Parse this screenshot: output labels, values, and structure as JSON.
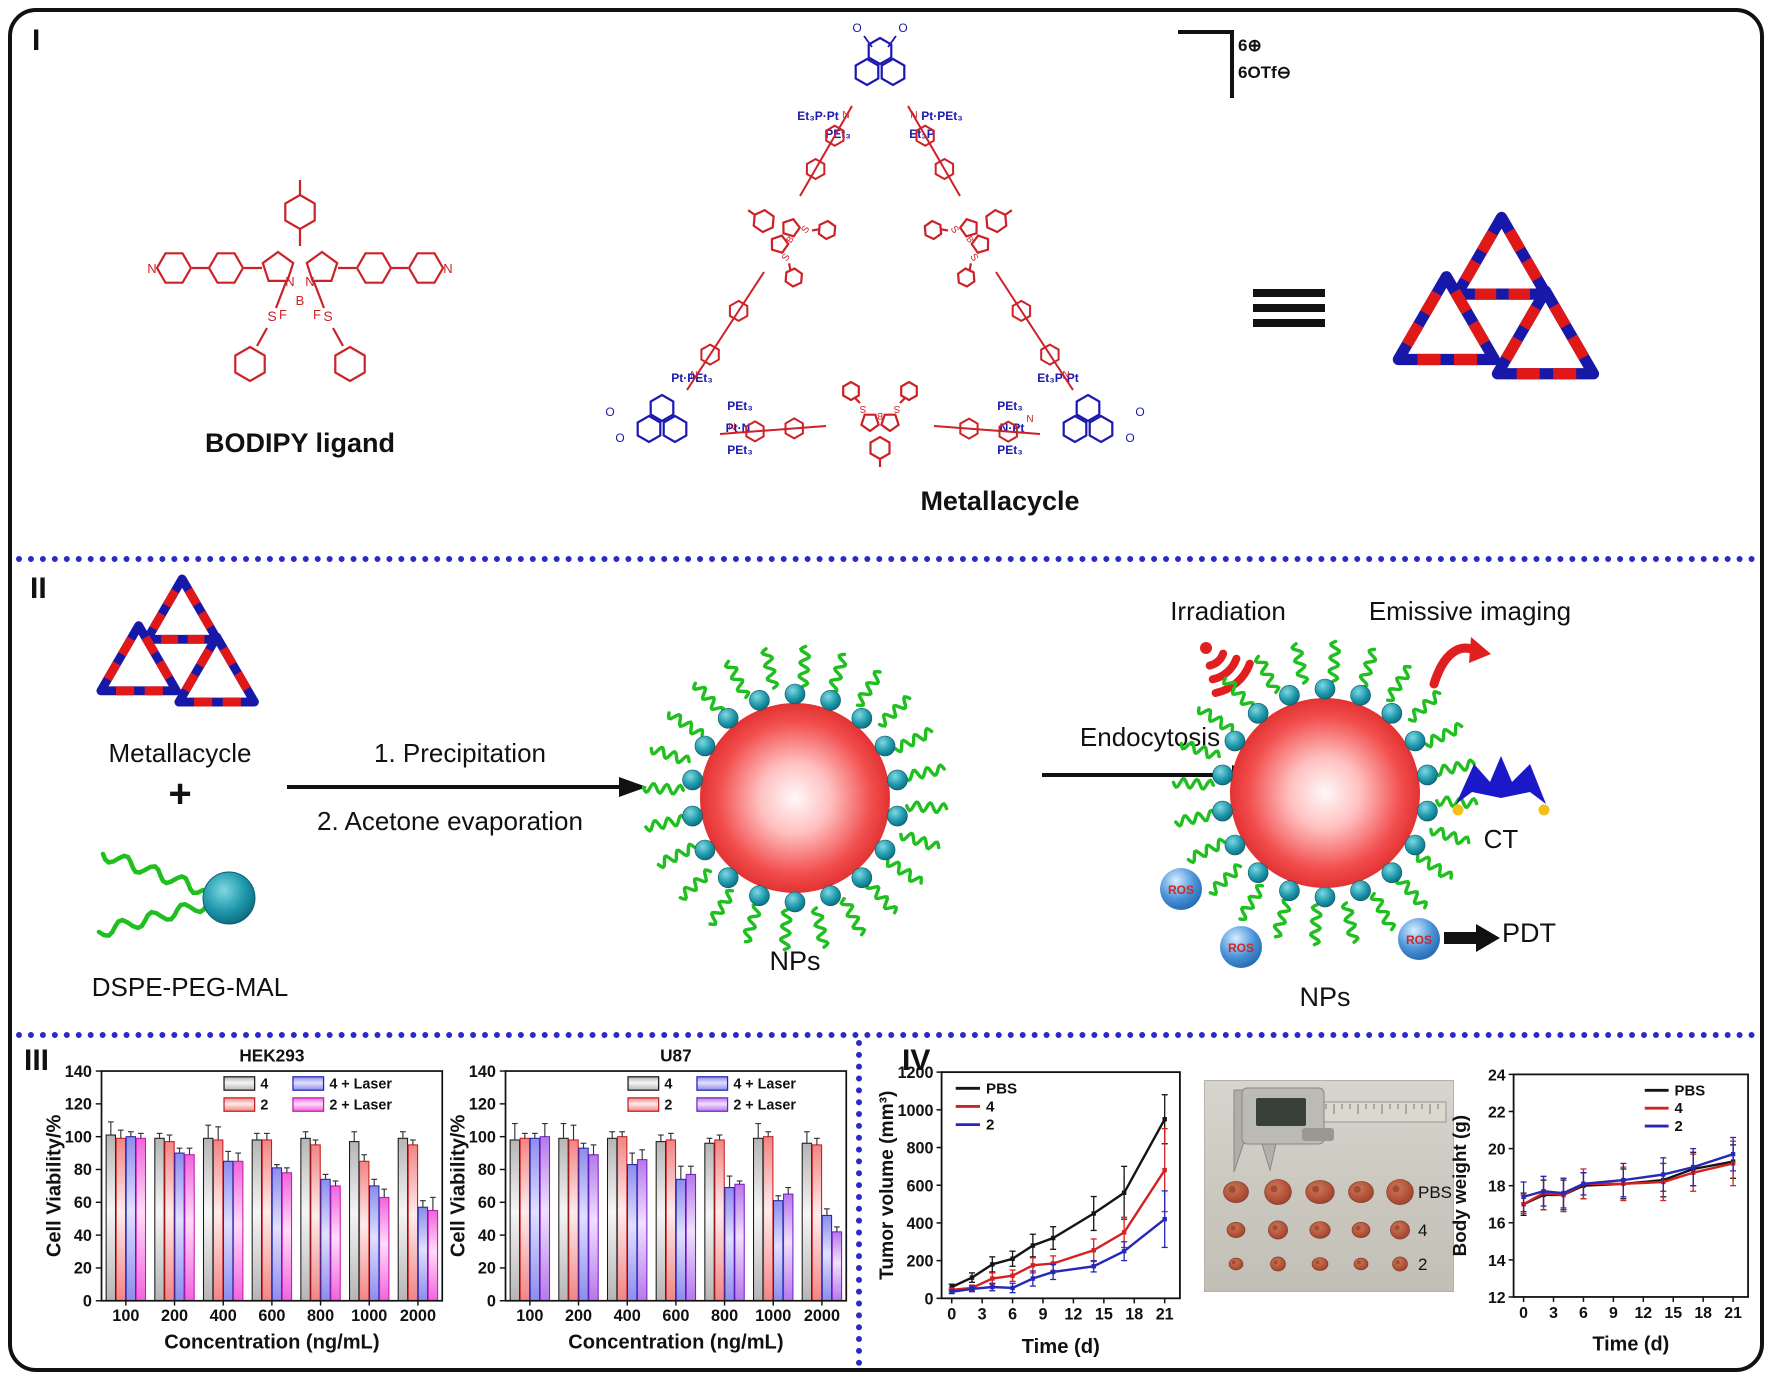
{
  "frame": {
    "panel_labels": {
      "p1": "I",
      "p2": "II",
      "p3": "III",
      "p4": "IV"
    }
  },
  "atoms": {
    "N": "N",
    "S": "S",
    "B": "B",
    "F": "F",
    "O": "O"
  },
  "groups": {
    "pet3": "PEt₃",
    "et3p": "Et₃P",
    "pt_pet3": "Pt·PEt₃",
    "et3p_pt": "Et₃P·Pt",
    "pt_n": "Pt·N",
    "n_pt": "N·Pt"
  },
  "colors": {
    "structure_red": "#cc2127",
    "structure_blue": "#1a18b0",
    "divider_blue": "#2a2ac8",
    "squiggle_green": "#1fbf1f",
    "bead_teal": "#1e98ab",
    "np_red": "#e42020",
    "ros_blue": "#4a93d8",
    "icon_red": "#e02020",
    "ct_blue": "#1a18c8"
  },
  "panel1": {
    "label_bodipy": "BODIPY ligand",
    "label_metallacycle": "Metallacycle",
    "charge_top": "6⊕",
    "charge_bottom": "6OTf⊖"
  },
  "panel2": {
    "metallacycle": "Metallacycle",
    "plus": "+",
    "dspe": "DSPE-PEG-MAL",
    "step1": "1. Precipitation",
    "step2": "2. Acetone evaporation",
    "nps_left": "NPs",
    "endocytosis": "Endocytosis",
    "irradiation": "Irradiation",
    "emissive_imaging": "Emissive imaging",
    "ct": "CT",
    "pdt": "PDT",
    "ros": "ROS",
    "nps_right": "NPs"
  },
  "panel4_photo": {
    "row_labels": [
      "PBS",
      "4",
      "2"
    ]
  },
  "chart_data": [
    {
      "type": "bar",
      "title": "HEK293",
      "xlabel": "Concentration (ng/mL)",
      "ylabel": "Cell Viability/%",
      "ylim": [
        0,
        140
      ],
      "ystep": 20,
      "legend_position": "top-right",
      "categories": [
        "100",
        "200",
        "400",
        "600",
        "800",
        "1000",
        "2000"
      ],
      "series": [
        {
          "name": "4",
          "values": [
            101,
            99,
            99,
            98,
            99,
            97,
            99
          ],
          "errors": [
            8,
            3,
            8,
            4,
            4,
            6,
            4
          ],
          "border": "#1a1a1a",
          "mid": "#b5b5b5",
          "light": "#f5f5f5"
        },
        {
          "name": "2",
          "values": [
            99,
            97,
            98,
            98,
            95,
            85,
            95
          ],
          "errors": [
            5,
            4,
            8,
            4,
            3,
            4,
            3
          ],
          "border": "#c41e1e",
          "mid": "#f28484",
          "light": "#ffecec"
        },
        {
          "name": "4 + Laser",
          "values": [
            100,
            90,
            85,
            81,
            74,
            70,
            57
          ],
          "errors": [
            3,
            3,
            6,
            2,
            3,
            4,
            4
          ],
          "border": "#2424ae",
          "mid": "#8c8cec",
          "light": "#e0e0ff"
        },
        {
          "name": "2 + Laser",
          "values": [
            99,
            89,
            85,
            78,
            70,
            63,
            55
          ],
          "errors": [
            3,
            4,
            5,
            3,
            3,
            5,
            8
          ],
          "border": "#c218b4",
          "mid": "#f263dc",
          "light": "#ffdcf8"
        }
      ]
    },
    {
      "type": "bar",
      "title": "U87",
      "xlabel": "Concentration (ng/mL)",
      "ylabel": "Cell Viability/%",
      "ylim": [
        0,
        140
      ],
      "ystep": 20,
      "legend_position": "top-right",
      "categories": [
        "100",
        "200",
        "400",
        "600",
        "800",
        "1000",
        "2000"
      ],
      "series": [
        {
          "name": "4",
          "values": [
            98,
            99,
            99,
            97,
            96,
            99,
            96
          ],
          "errors": [
            10,
            9,
            4,
            4,
            3,
            9,
            7
          ],
          "border": "#1a1a1a",
          "mid": "#b5b5b5",
          "light": "#f5f5f5"
        },
        {
          "name": "2",
          "values": [
            99,
            98,
            100,
            98,
            98,
            100,
            95
          ],
          "errors": [
            3,
            9,
            3,
            4,
            3,
            3,
            4
          ],
          "border": "#c41e1e",
          "mid": "#f28484",
          "light": "#ffecec"
        },
        {
          "name": "4 + Laser",
          "values": [
            99,
            93,
            83,
            74,
            69,
            61,
            52
          ],
          "errors": [
            3,
            3,
            7,
            8,
            7,
            3,
            4
          ],
          "border": "#2424ae",
          "mid": "#8c8cec",
          "light": "#e0e0ff"
        },
        {
          "name": "2 + Laser",
          "values": [
            100,
            89,
            86,
            77,
            71,
            65,
            42
          ],
          "errors": [
            8,
            6,
            6,
            5,
            2,
            4,
            3
          ],
          "border": "#7b1fc4",
          "mid": "#b578ea",
          "light": "#f0e0ff"
        }
      ]
    },
    {
      "type": "line",
      "title": "",
      "xlabel": "Time (d)",
      "ylabel": "Tumor volume (mm³)",
      "ylim": [
        0,
        1200
      ],
      "ystep": 200,
      "xlim": [
        -1,
        22.5
      ],
      "xticks": [
        0,
        3,
        6,
        9,
        12,
        15,
        18,
        21
      ],
      "legend_position": "top-left",
      "x": [
        0,
        2,
        4,
        6,
        8,
        10,
        14,
        17,
        21
      ],
      "series": [
        {
          "name": "PBS",
          "color": "#151515",
          "values": [
            60,
            110,
            180,
            210,
            280,
            320,
            450,
            560,
            950
          ],
          "errors": [
            15,
            25,
            40,
            40,
            60,
            60,
            90,
            140,
            130
          ]
        },
        {
          "name": "4",
          "color": "#d42222",
          "values": [
            45,
            55,
            105,
            120,
            175,
            185,
            255,
            350,
            680
          ],
          "errors": [
            10,
            15,
            30,
            30,
            40,
            40,
            60,
            80,
            220
          ]
        },
        {
          "name": "2",
          "color": "#2628b8",
          "values": [
            35,
            50,
            60,
            55,
            105,
            140,
            170,
            250,
            420
          ],
          "errors": [
            10,
            15,
            20,
            25,
            40,
            40,
            30,
            50,
            150
          ]
        }
      ]
    },
    {
      "type": "line",
      "title": "",
      "xlabel": "Time (d)",
      "ylabel": "Body weight (g)",
      "ylim": [
        12,
        24
      ],
      "ystep": 2,
      "xlim": [
        -1,
        22.5
      ],
      "xticks": [
        0,
        3,
        6,
        9,
        12,
        15,
        18,
        21
      ],
      "legend_position": "top-right",
      "x": [
        0,
        2,
        4,
        6,
        10,
        14,
        17,
        21
      ],
      "series": [
        {
          "name": "PBS",
          "color": "#151515",
          "values": [
            17.0,
            17.5,
            17.5,
            18.0,
            18.1,
            18.3,
            18.9,
            19.3
          ],
          "errors": [
            0.6,
            0.8,
            0.8,
            0.7,
            0.8,
            0.9,
            0.9,
            0.9
          ]
        },
        {
          "name": "4",
          "color": "#d42222",
          "values": [
            17.0,
            17.6,
            17.5,
            18.1,
            18.1,
            18.2,
            18.7,
            19.2
          ],
          "errors": [
            0.5,
            0.9,
            0.9,
            0.8,
            0.9,
            1.0,
            1.0,
            1.2
          ]
        },
        {
          "name": "2",
          "color": "#2628b8",
          "values": [
            17.4,
            17.7,
            17.6,
            18.1,
            18.3,
            18.6,
            19.0,
            19.7
          ],
          "errors": [
            0.8,
            0.8,
            0.8,
            0.6,
            0.9,
            0.9,
            1.0,
            0.9
          ]
        }
      ]
    }
  ]
}
